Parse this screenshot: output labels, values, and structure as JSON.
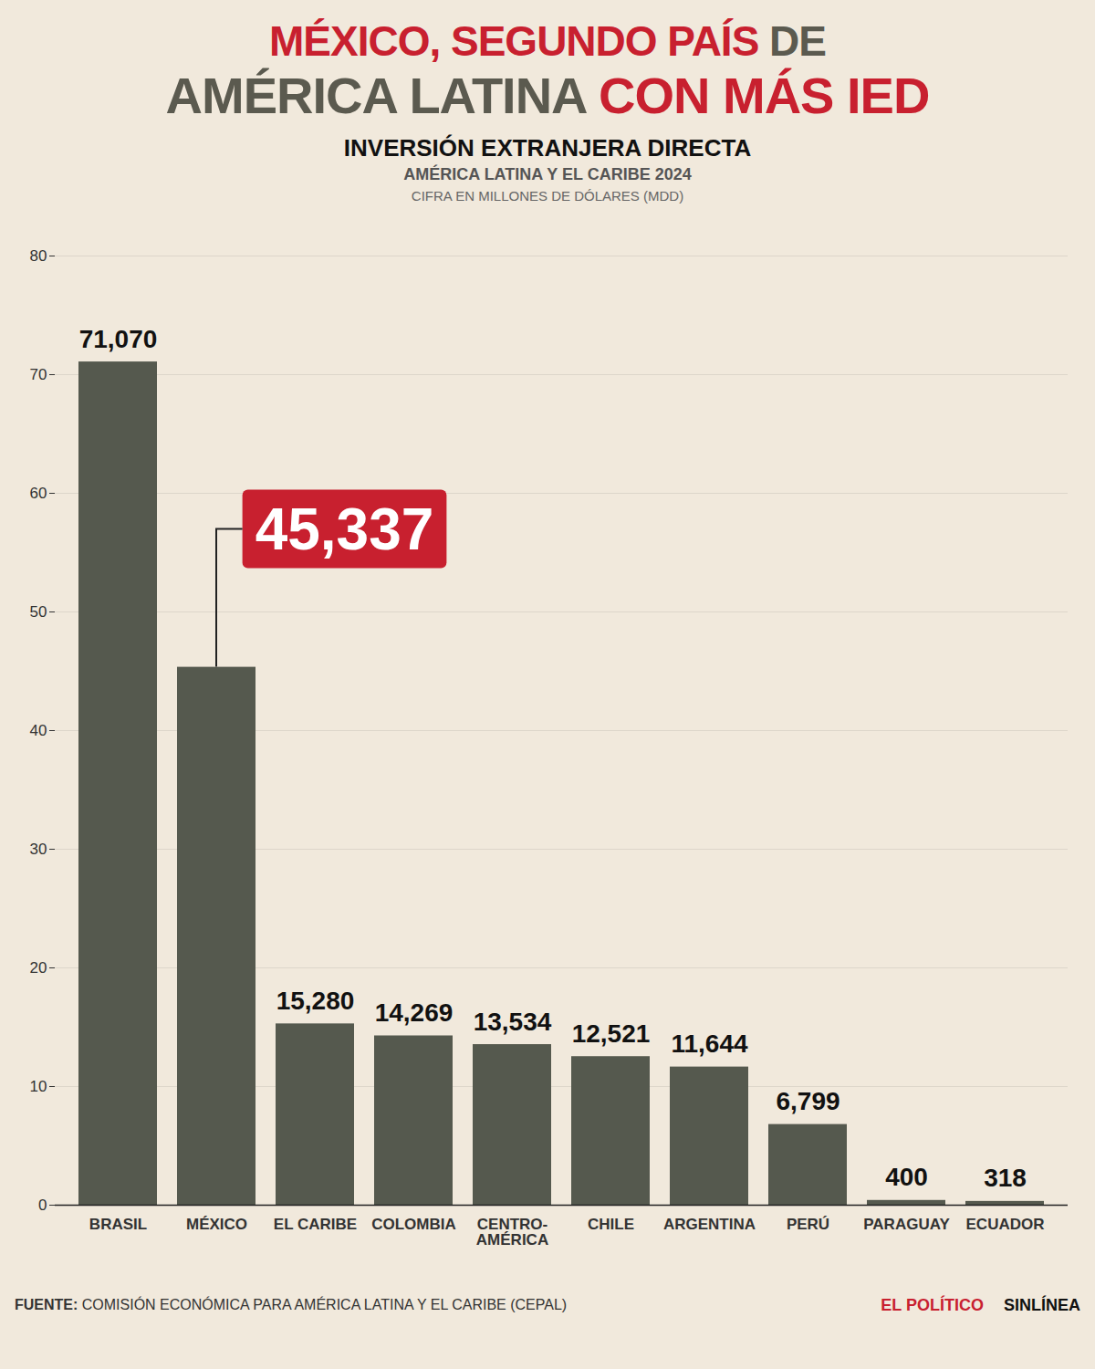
{
  "chart_data": {
    "type": "bar",
    "title": [
      [
        "MÉXICO, SEGUNDO PAÍS",
        "DE"
      ],
      [
        "AMÉRICA LATINA",
        "CON MÁS IED"
      ]
    ],
    "subtitle": [
      "INVERSIÓN EXTRANJERA DIRECTA",
      "AMÉRICA LATINA Y EL CARIBE 2024",
      "CIFRA EN MILLONES DE DÓLARES (MDD)"
    ],
    "categories": [
      "BRASIL",
      "MÉXICO",
      "EL CARIBE",
      "COLOMBIA",
      "CENTRO-AMÉRICA",
      "CHILE",
      "ARGENTINA",
      "PERÚ",
      "PARAGUAY",
      "ECUADOR"
    ],
    "values": [
      71.07,
      45.337,
      15.28,
      14.269,
      13.534,
      12.521,
      11.644,
      6.799,
      0.4,
      0.318
    ],
    "value_labels": [
      "71,070",
      "45,337",
      "15,280",
      "14,269",
      "13,534",
      "12,521",
      "11,644",
      "6,799",
      "400",
      "318"
    ],
    "data_labels": true,
    "color": "#55594e",
    "ylim": [
      0,
      80
    ],
    "yticks": [
      0,
      10,
      20,
      30,
      40,
      50,
      60,
      70,
      80
    ],
    "grid": true,
    "annotations": [
      {
        "category": "MÉXICO",
        "text": "45,337"
      }
    ],
    "source": "FUENTE: COMISIÓN ECONÓMICA PARA AMÉRICA LATINA Y EL CARIBE (CEPAL)",
    "credits": [
      "EL POLÍTICO",
      "SINLÍNEA"
    ]
  }
}
